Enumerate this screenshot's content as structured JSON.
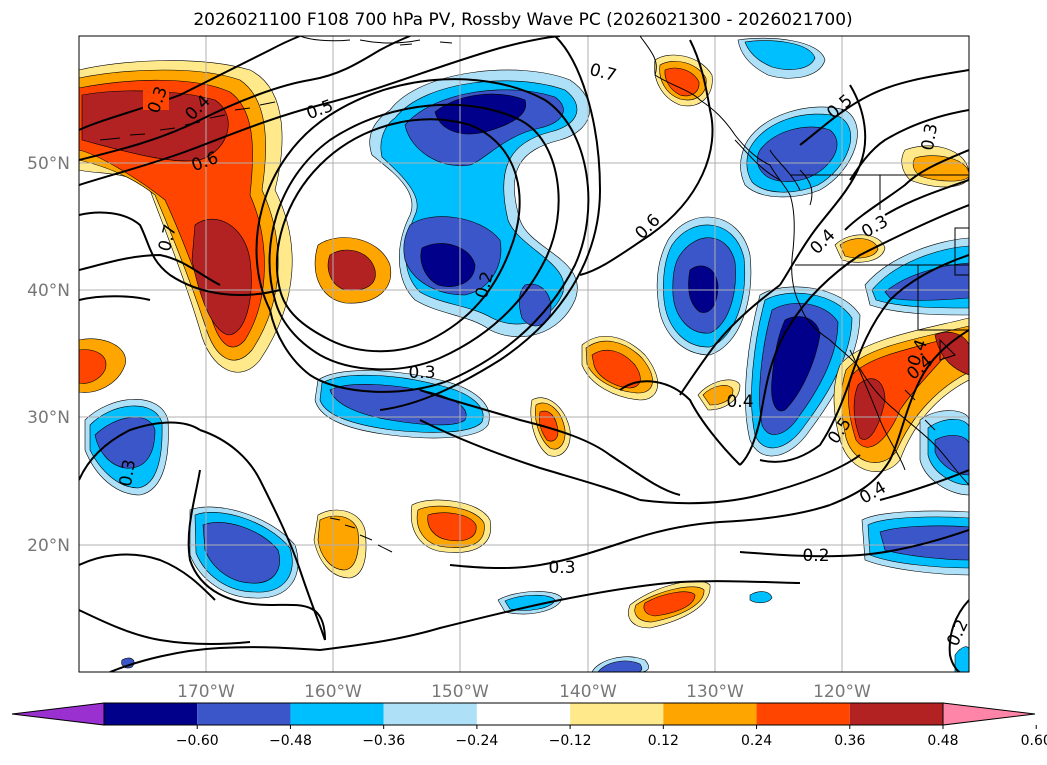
{
  "title": "2026021100 F108 700 hPa PV, Rossby Wave PC (2026021300 - 2026021700)",
  "lat_labels": [
    "50°N",
    "40°N",
    "30°N",
    "20°N"
  ],
  "lon_labels": [
    "170°W",
    "160°W",
    "150°W",
    "140°W",
    "130°W",
    "120°W"
  ],
  "colorbar": {
    "ticks": [
      "−0.60",
      "−0.48",
      "−0.36",
      "−0.24",
      "−0.12",
      "0.12",
      "0.24",
      "0.36",
      "0.48",
      "0.60"
    ],
    "colors": [
      "#9b30d0",
      "#00008b",
      "#3a56c8",
      "#00bfff",
      "#aee0f8",
      "#ffffff",
      "#ffe98a",
      "#ffa500",
      "#ff4500",
      "#b22222",
      "#ff85a8"
    ]
  },
  "contour_labels": [
    "0.3",
    "0.4",
    "0.5",
    "0.6",
    "0.7",
    "0.6",
    "0.2",
    "0.3",
    "0.3",
    "0.7",
    "0.5",
    "0.3",
    "0.4",
    "0.3",
    "0.4",
    "0.4",
    "0.4",
    "0.5",
    "0.4",
    "0.2",
    "0.3",
    "0.2",
    "0.2"
  ],
  "colors": {
    "frame": "#000000",
    "grid": "#b0b0b0",
    "contour": "#000000",
    "coast": "#000000"
  }
}
